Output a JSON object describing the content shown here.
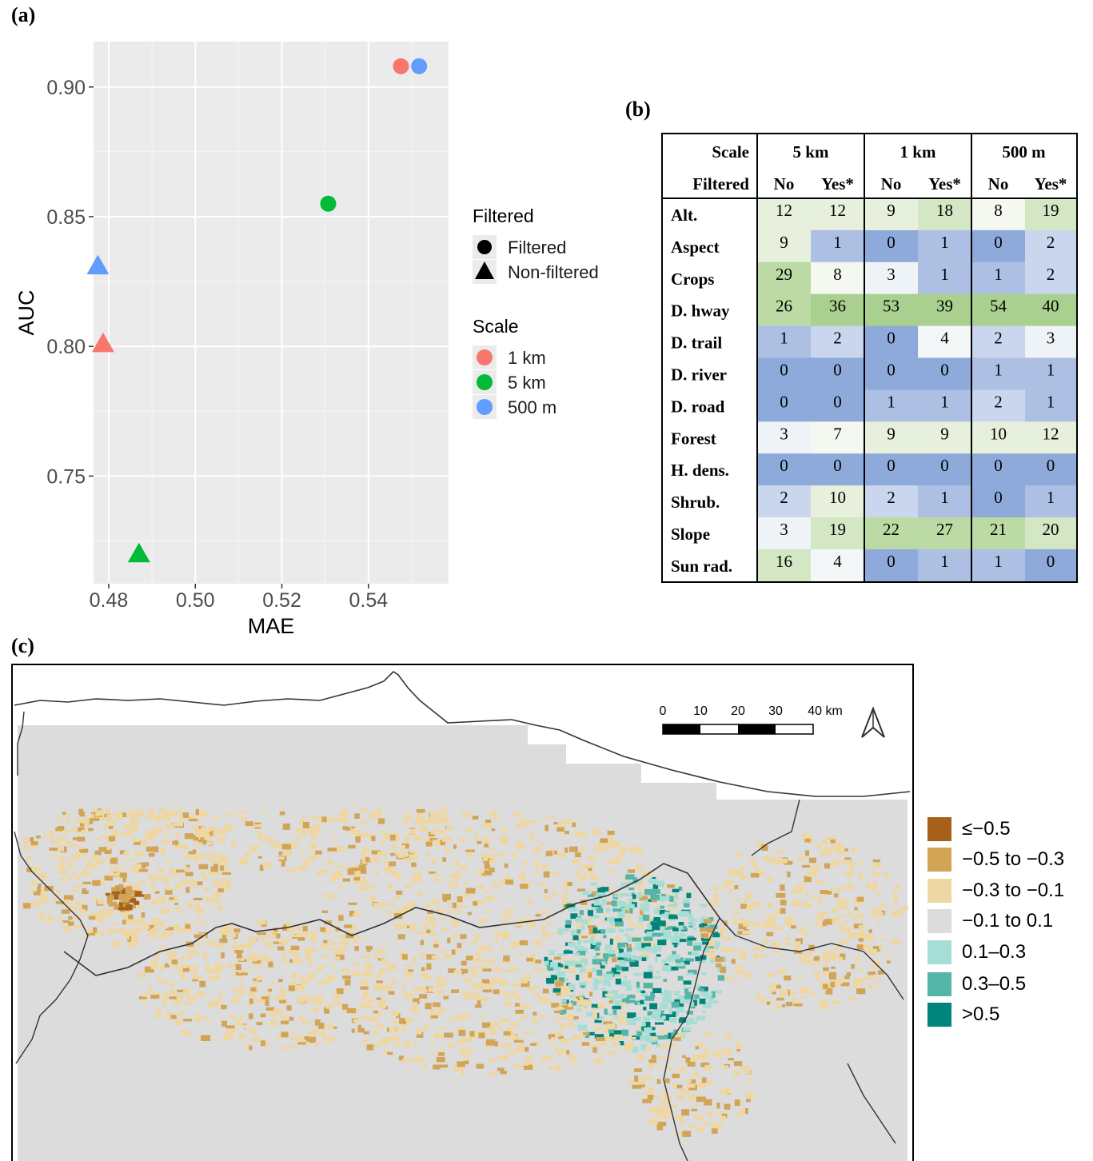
{
  "labels": {
    "a": "(a)",
    "b": "(b)",
    "c": "(c)"
  },
  "chart_data": [
    {
      "type": "scatter",
      "xlabel": "MAE",
      "ylabel": "AUC",
      "xlim": [
        0.4765,
        0.5585
      ],
      "ylim": [
        0.7085,
        0.9175
      ],
      "xticks": [
        "0.48",
        "0.50",
        "0.52",
        "0.54"
      ],
      "xtick_values": [
        0.48,
        0.5,
        0.52,
        0.54
      ],
      "yticks": [
        "0.75",
        "0.80",
        "0.85",
        "0.90"
      ],
      "ytick_values": [
        0.75,
        0.8,
        0.85,
        0.9
      ],
      "grid": true,
      "legend_placement": "right",
      "legend_shape": {
        "title": "Filtered",
        "items": [
          {
            "label": "Filtered",
            "shape": "circle"
          },
          {
            "label": "Non-filtered",
            "shape": "triangle"
          }
        ]
      },
      "legend_color": {
        "title": "Scale",
        "items": [
          {
            "label": "1 km",
            "color": "#f8766d"
          },
          {
            "label": "5 km",
            "color": "#00ba38"
          },
          {
            "label": "500 m",
            "color": "#619cff"
          }
        ]
      },
      "points": [
        {
          "scale": "1 km",
          "filtered": "Filtered",
          "x": 0.5475,
          "y": 0.908,
          "color": "#f8766d",
          "shape": "circle"
        },
        {
          "scale": "500 m",
          "filtered": "Filtered",
          "x": 0.5517,
          "y": 0.908,
          "color": "#619cff",
          "shape": "circle"
        },
        {
          "scale": "5 km",
          "filtered": "Filtered",
          "x": 0.5307,
          "y": 0.855,
          "color": "#00ba38",
          "shape": "circle"
        },
        {
          "scale": "500 m",
          "filtered": "Non-filtered",
          "x": 0.4775,
          "y": 0.831,
          "color": "#619cff",
          "shape": "triangle"
        },
        {
          "scale": "1 km",
          "filtered": "Non-filtered",
          "x": 0.4787,
          "y": 0.801,
          "color": "#f8766d",
          "shape": "triangle"
        },
        {
          "scale": "5 km",
          "filtered": "Non-filtered",
          "x": 0.487,
          "y": 0.72,
          "color": "#00ba38",
          "shape": "triangle"
        }
      ]
    },
    {
      "type": "table",
      "header_row1_label": "Scale",
      "header_row2_label": "Filtered",
      "scales": [
        "5 km",
        "1 km",
        "500 m"
      ],
      "filtered_labels": [
        "No",
        "Yes*"
      ],
      "rows": [
        {
          "name": "Alt.",
          "values": [
            12,
            12,
            9,
            18,
            8,
            19
          ]
        },
        {
          "name": "Aspect",
          "values": [
            9,
            1,
            0,
            1,
            0,
            2
          ]
        },
        {
          "name": "Crops",
          "values": [
            29,
            8,
            3,
            1,
            1,
            2
          ]
        },
        {
          "name": "D. hway",
          "values": [
            26,
            36,
            53,
            39,
            54,
            40
          ]
        },
        {
          "name": "D. trail",
          "values": [
            1,
            2,
            0,
            4,
            2,
            3
          ]
        },
        {
          "name": "D. river",
          "values": [
            0,
            0,
            0,
            0,
            1,
            1
          ]
        },
        {
          "name": "D. road",
          "values": [
            0,
            0,
            1,
            1,
            2,
            1
          ]
        },
        {
          "name": "Forest",
          "values": [
            3,
            7,
            9,
            9,
            10,
            12
          ]
        },
        {
          "name": "H. dens.",
          "values": [
            0,
            0,
            0,
            0,
            0,
            0
          ]
        },
        {
          "name": "Shrub.",
          "values": [
            2,
            10,
            2,
            1,
            0,
            1
          ]
        },
        {
          "name": "Slope",
          "values": [
            3,
            19,
            22,
            27,
            21,
            20
          ]
        },
        {
          "name": "Sun rad.",
          "values": [
            16,
            4,
            0,
            1,
            1,
            0
          ]
        }
      ]
    }
  ],
  "map": {
    "scale_bar_ticks": [
      "0",
      "10",
      "20",
      "30",
      "40 km"
    ],
    "legend": [
      {
        "label": "≤−0.5",
        "color": "#a6611a"
      },
      {
        "label": "−0.5 to −0.3",
        "color": "#d2a456"
      },
      {
        "label": "−0.3 to −0.1",
        "color": "#efd7a3"
      },
      {
        "label": "−0.1 to 0.1",
        "color": "#dcdcdc"
      },
      {
        "label": "0.1–0.3",
        "color": "#a6ded6"
      },
      {
        "label": "0.3–0.5",
        "color": "#55b5a6"
      },
      {
        "label": ">0.5",
        "color": "#01857a"
      }
    ]
  }
}
